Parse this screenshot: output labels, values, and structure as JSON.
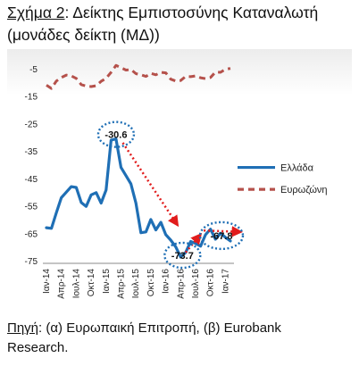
{
  "title": {
    "prefix": "Σχήμα 2",
    "sep": ":",
    "text": " Δείκτης Εμπιστοσύνης Καταναλωτή",
    "line2": "(μονάδες δείκτη (ΜΔ))"
  },
  "source": {
    "label": "Πηγή",
    "sep": ":",
    "line1": " (α) Ευρωπαική Επιτροπή, (β) Eurobank",
    "line2": "Research."
  },
  "colors": {
    "greece": "#1f6fb5",
    "eurozone": "#b5514b",
    "annotation": "#1f6fb5",
    "arrow": "#e11c1c"
  },
  "chart_data": {
    "type": "line",
    "xlabel": "",
    "ylabel": "",
    "ylim": [
      -75,
      -5
    ],
    "yticks": [
      -5,
      -15,
      -25,
      -35,
      -45,
      -55,
      -65,
      -75
    ],
    "xticks": [
      "Ιαν-14",
      "Απρ-14",
      "Ιουλ-14",
      "Οκτ-14",
      "Ιαν-15",
      "Απρ-15",
      "Ιουλ-15",
      "Οκτ-15",
      "Ιαν-16",
      "Απρ-16",
      "Ιουλ-16",
      "Οκτ-16",
      "Ιαν-17"
    ],
    "n_points": 38,
    "legend_position": "right",
    "series": [
      {
        "name": "Ελλάδα",
        "style": "solid",
        "values": [
          -63,
          -63.2,
          -57.5,
          -52,
          -50,
          -48,
          -48.3,
          -53.8,
          -55.2,
          -51,
          -50.2,
          -54,
          -49.2,
          -31,
          -30.6,
          -41,
          -44,
          -47,
          -54,
          -64.8,
          -64.5,
          -60,
          -63.8,
          -61,
          -65.5,
          -67.5,
          -70,
          -73.7,
          -72,
          -68,
          -68.7,
          -69.7,
          -65.5,
          -63.5,
          -67.2,
          -65,
          -66.5,
          -67.8
        ]
      },
      {
        "name": "Ευρωζώνη",
        "style": "dashed",
        "values": [
          -11,
          -12.2,
          -9.5,
          -8.2,
          -7.3,
          -7.6,
          -8.5,
          -10.8,
          -11.3,
          -11.5,
          -11.2,
          -9.6,
          -8.5,
          -6.3,
          -3.8,
          -4.6,
          -5.5,
          -5.3,
          -6.8,
          -7.2,
          -7.8,
          -6.7,
          -7.2,
          -6.3,
          -6.5,
          -8.8,
          -9.5,
          -9.3,
          -7.8,
          -7.9,
          -7.6,
          -8.3,
          -8.6,
          -8.2,
          -6.2,
          -6.3,
          -5.2,
          -4.9
        ]
      }
    ],
    "annotations": [
      {
        "label": "-30.6",
        "index": 14,
        "value": -30.6
      },
      {
        "label": "-73.7",
        "index": 27,
        "value": -73.7
      },
      {
        "label": "-67.8",
        "index": 37,
        "value": -67.8
      }
    ]
  }
}
